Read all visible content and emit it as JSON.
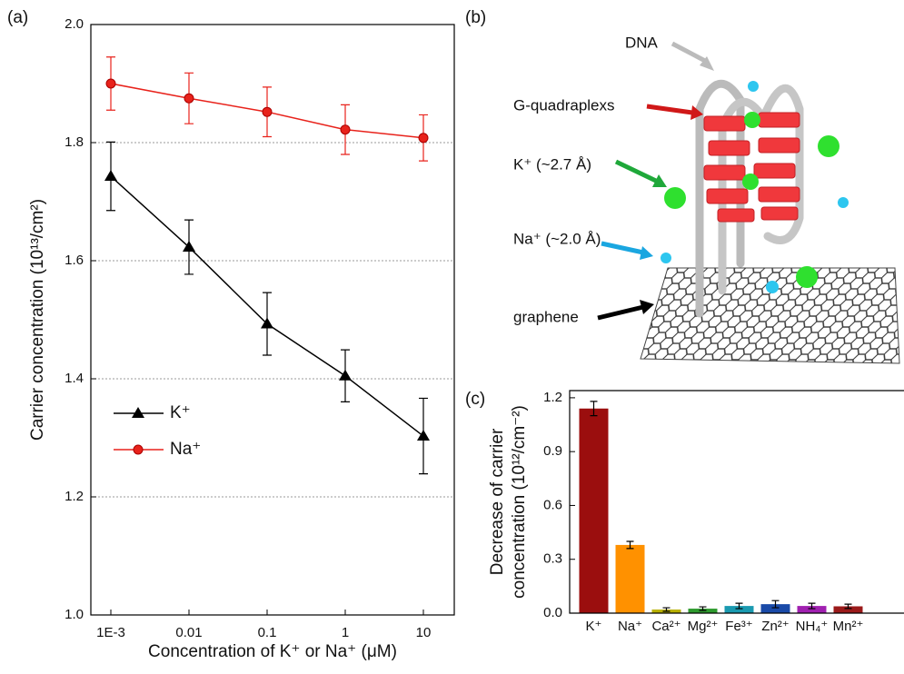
{
  "chart_data": [
    {
      "type": "line",
      "panel": "(a)",
      "xlabel": "Concentration of K⁺ or Na⁺ (μM)",
      "ylabel": "Carrier concentration (10¹³/cm²)",
      "categories": [
        "1E-3",
        "0.01",
        "0.1",
        "1",
        "10"
      ],
      "ylim": [
        1.0,
        2.0
      ],
      "yticks": [
        {
          "value": 1.0,
          "label": "1.0"
        },
        1.2,
        1.4,
        1.6,
        1.8,
        {
          "value": 2.0,
          "label": "2.0"
        }
      ],
      "grid": true,
      "legend": "lower left",
      "series": [
        {
          "name": "K⁺",
          "color": "#000000",
          "marker": "triangle",
          "values": [
            1.743,
            1.623,
            1.493,
            1.405,
            1.303
          ],
          "errors": [
            0.058,
            0.046,
            0.053,
            0.044,
            0.064
          ]
        },
        {
          "name": "Na⁺",
          "color": "#e8221b",
          "marker": "circle",
          "values": [
            1.9,
            1.875,
            1.852,
            1.822,
            1.808
          ],
          "errors": [
            0.045,
            0.043,
            0.042,
            0.042,
            0.039
          ]
        }
      ]
    },
    {
      "type": "bar",
      "panel": "(c)",
      "ylabel": [
        "Decrease of carrier",
        "concentration (10¹²/cm⁻²)"
      ],
      "categories": [
        "K⁺",
        "Na⁺",
        "Ca²⁺",
        "Mg²⁺",
        "Fe³⁺",
        "Zn²⁺",
        "NH₄⁺",
        "Mn²⁺"
      ],
      "values": [
        1.14,
        0.38,
        0.02,
        0.025,
        0.04,
        0.05,
        0.04,
        0.038
      ],
      "errors": [
        0.04,
        0.02,
        0.01,
        0.01,
        0.015,
        0.02,
        0.015,
        0.012
      ],
      "colors": [
        "#9b0e0e",
        "#ff9100",
        "#b8b000",
        "#2e9a2e",
        "#1a9ab0",
        "#1a4aa8",
        "#a020b0",
        "#9b1a1a"
      ],
      "ylim": [
        0,
        1.24
      ],
      "yticks": [
        {
          "value": 0,
          "label": "0.0"
        },
        0.3,
        0.6,
        0.9,
        1.2
      ],
      "grid": false
    }
  ],
  "diagram": {
    "panel": "(b)",
    "labels": [
      "DNA",
      "G-quadraplexs",
      "K⁺ (~2.7 Å)",
      "Na⁺ (~2.0 Å)",
      "graphene"
    ]
  }
}
